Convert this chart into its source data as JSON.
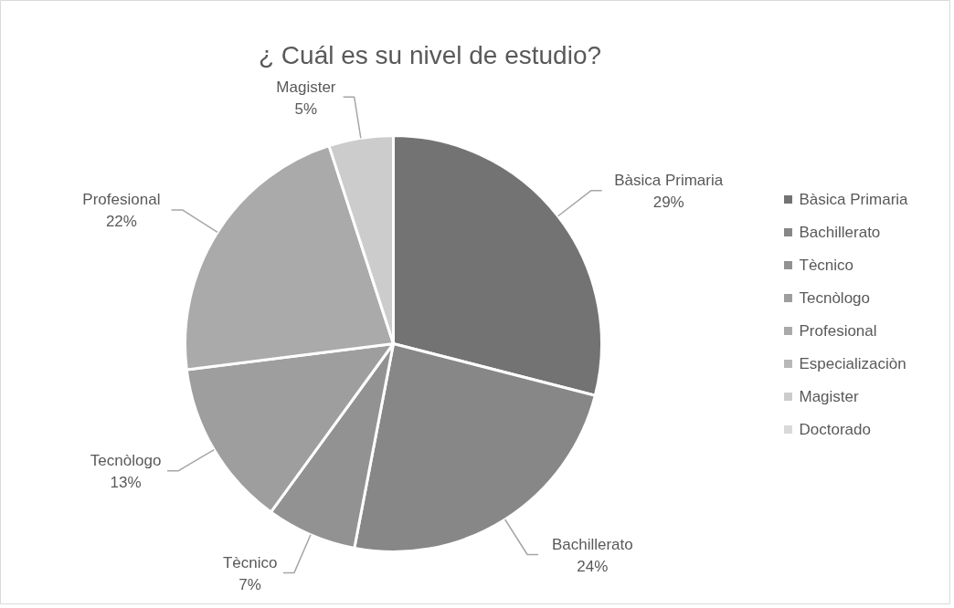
{
  "chart_data": {
    "type": "pie",
    "title": "¿ Cuál es su nivel de estudio?",
    "categories": [
      "Bàsica Primaria",
      "Bachillerato",
      "Tècnico",
      "Tecnòlogo",
      "Profesional",
      "Especializaciòn",
      "Magister",
      "Doctorado"
    ],
    "values": [
      29,
      24,
      7,
      13,
      22,
      0,
      5,
      0
    ],
    "value_labels": [
      "29%",
      "24%",
      "7%",
      "13%",
      "22%",
      null,
      "5%",
      null
    ],
    "colors": [
      "#737373",
      "#878787",
      "#929292",
      "#9e9e9e",
      "#aaaaaa",
      "#b8b8b8",
      "#cccccc",
      "#d9d9d9"
    ],
    "legend": "right"
  }
}
